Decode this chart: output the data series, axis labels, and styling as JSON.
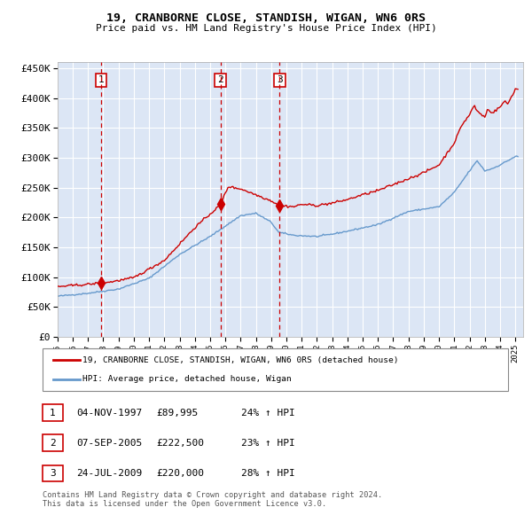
{
  "title": "19, CRANBORNE CLOSE, STANDISH, WIGAN, WN6 0RS",
  "subtitle": "Price paid vs. HM Land Registry's House Price Index (HPI)",
  "plot_bg_color": "#dce6f5",
  "red_line_color": "#cc0000",
  "blue_line_color": "#6699cc",
  "sale_marker_color": "#cc0000",
  "vline_color": "#cc0000",
  "grid_color": "#ffffff",
  "sale_events": [
    {
      "date_num": 1997.84,
      "price": 89995,
      "label": "1"
    },
    {
      "date_num": 2005.68,
      "price": 222500,
      "label": "2"
    },
    {
      "date_num": 2009.56,
      "price": 220000,
      "label": "3"
    }
  ],
  "sale_dates_text": [
    "04-NOV-1997",
    "07-SEP-2005",
    "24-JUL-2009"
  ],
  "sale_prices_text": [
    "£89,995",
    "£222,500",
    "£220,000"
  ],
  "sale_pcts_text": [
    "24% ↑ HPI",
    "23% ↑ HPI",
    "28% ↑ HPI"
  ],
  "ylabel_ticks": [
    "£0",
    "£50K",
    "£100K",
    "£150K",
    "£200K",
    "£250K",
    "£300K",
    "£350K",
    "£400K",
    "£450K"
  ],
  "ytick_values": [
    0,
    50000,
    100000,
    150000,
    200000,
    250000,
    300000,
    350000,
    400000,
    450000
  ],
  "xmin": 1995.0,
  "xmax": 2025.5,
  "ymin": 0,
  "ymax": 460000,
  "legend_red_label": "19, CRANBORNE CLOSE, STANDISH, WIGAN, WN6 0RS (detached house)",
  "legend_blue_label": "HPI: Average price, detached house, Wigan",
  "footnote": "Contains HM Land Registry data © Crown copyright and database right 2024.\nThis data is licensed under the Open Government Licence v3.0."
}
